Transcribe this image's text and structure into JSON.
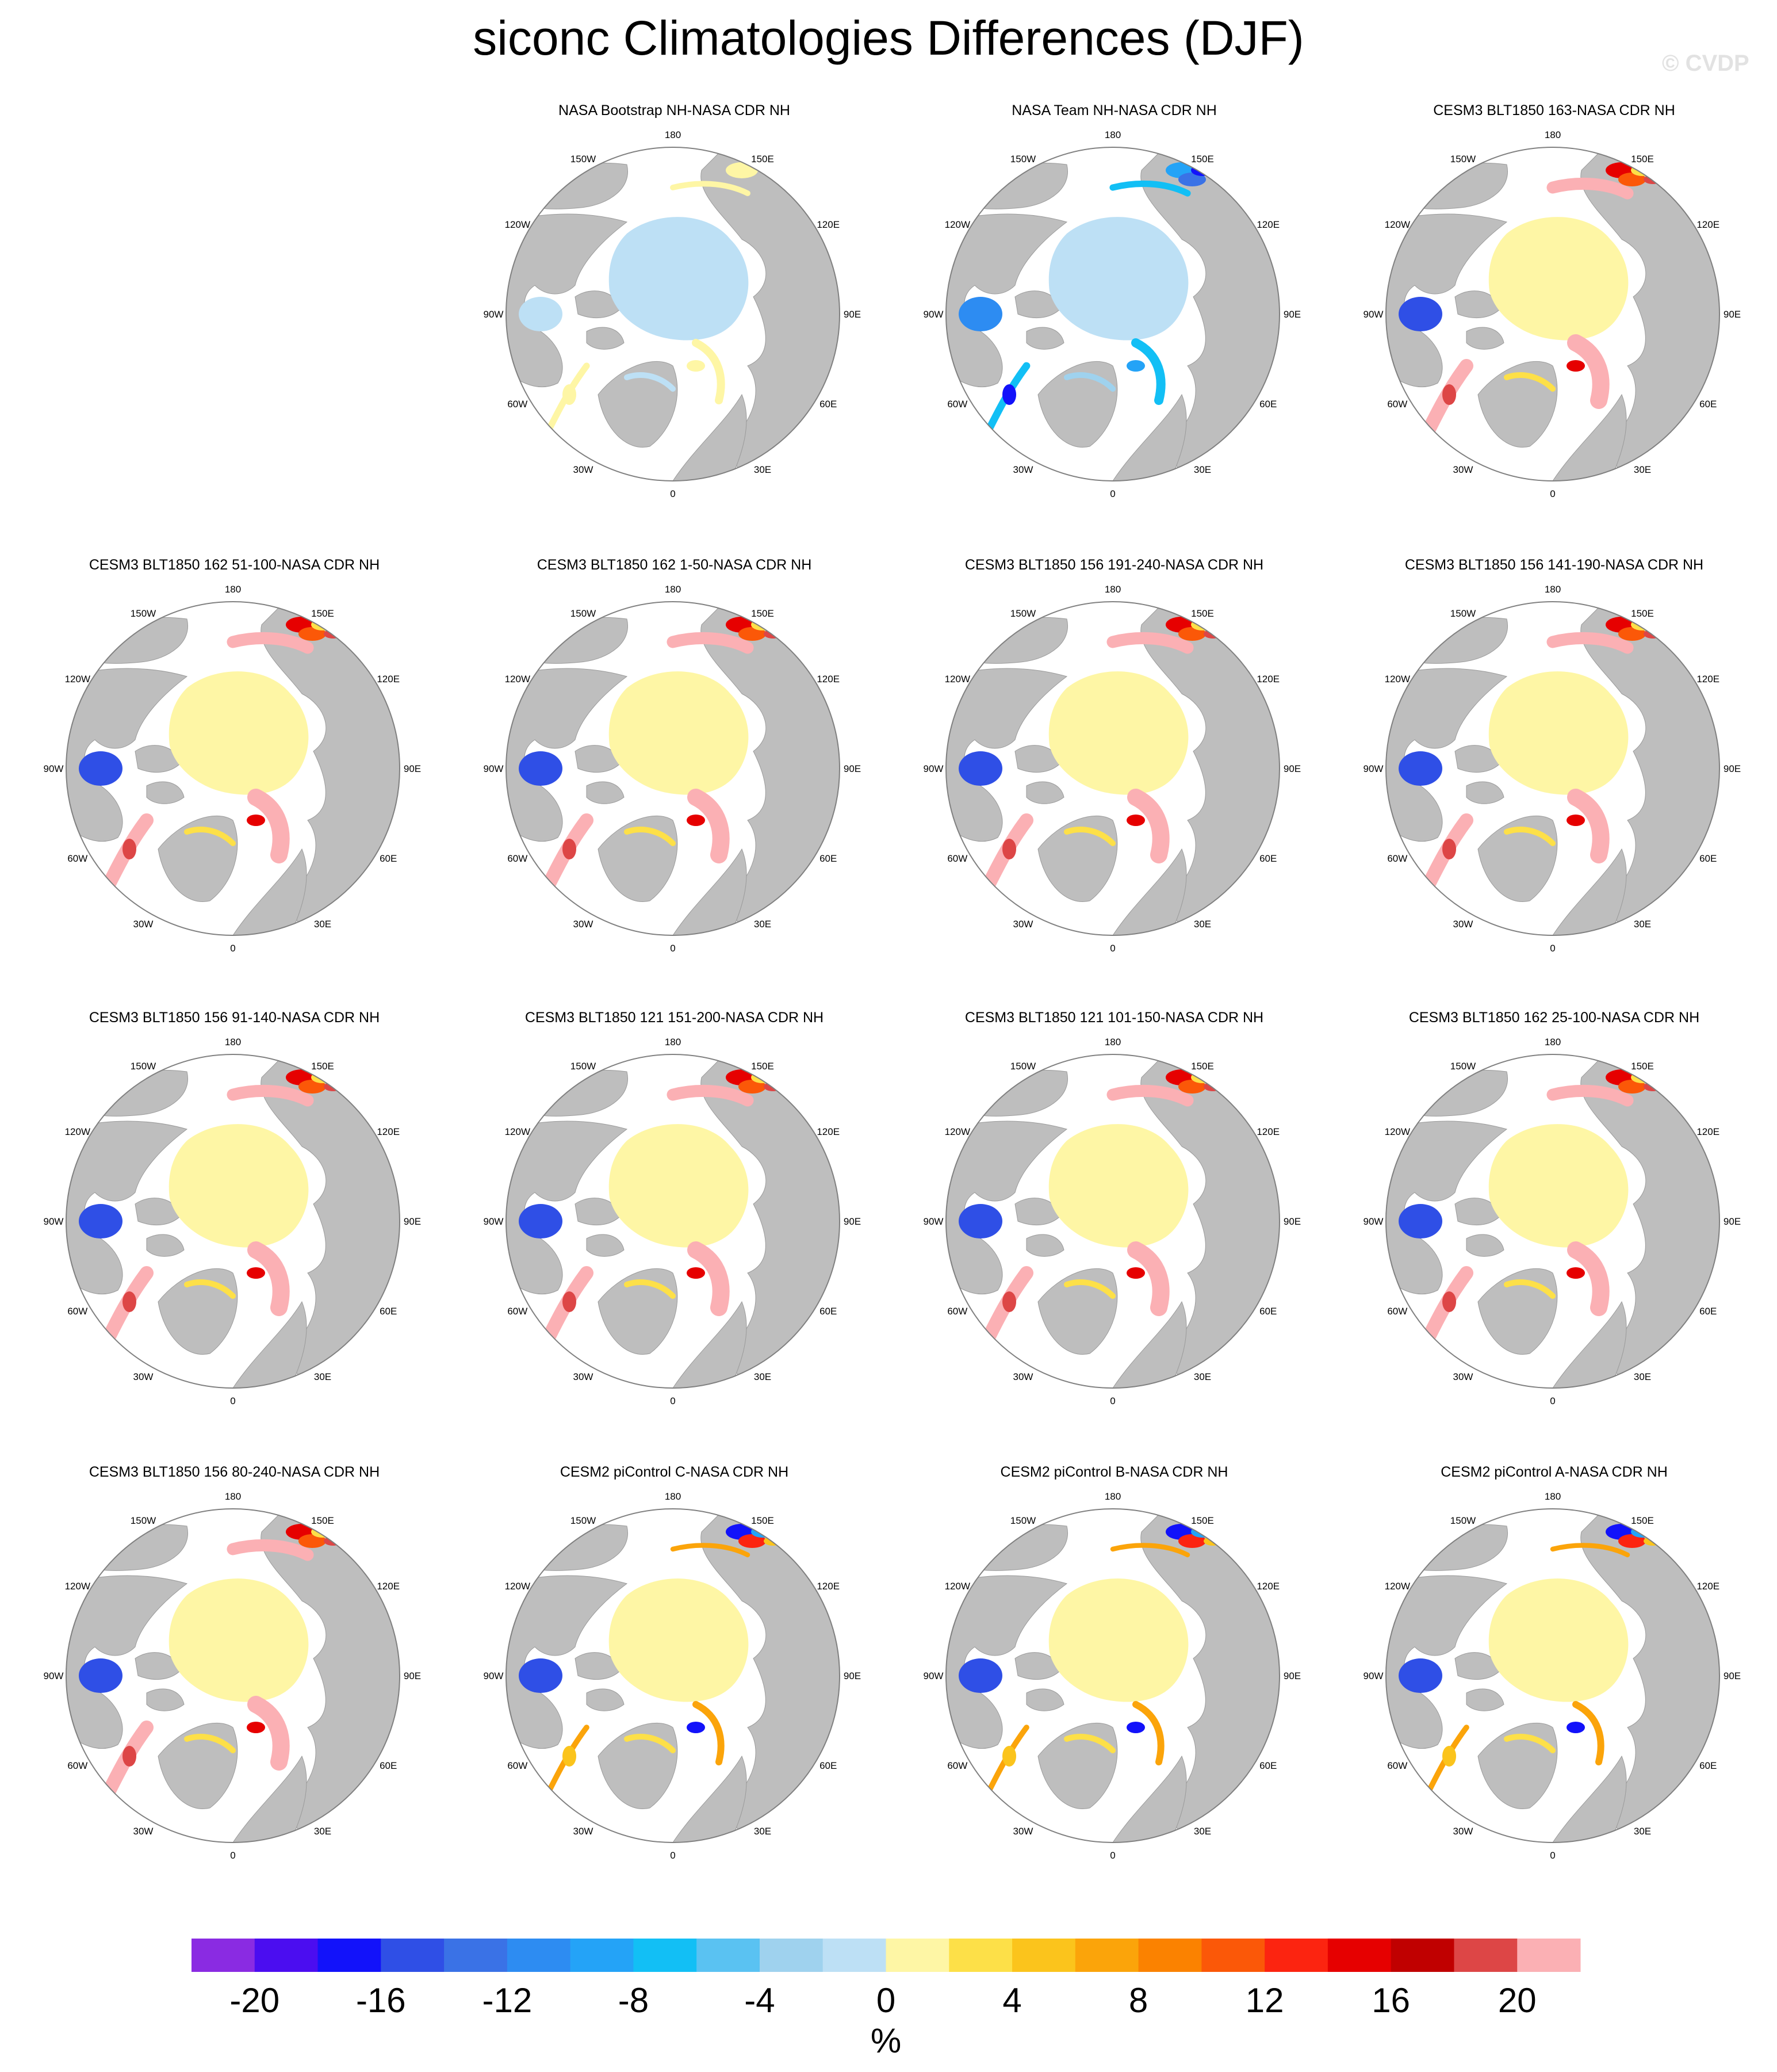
{
  "figure": {
    "title": "siconc Climatologies Differences (DJF)",
    "watermark": "© CVDP"
  },
  "lon_labels": [
    "180",
    "150E",
    "120E",
    "90E",
    "60E",
    "30E",
    "0",
    "30W",
    "60W",
    "90W",
    "120W",
    "150W"
  ],
  "colors": {
    "land": "#bebebe",
    "ocean": "#ffffff",
    "outline": "#808080",
    "zero_pos": "#fef6a5",
    "zero_neg": "#bde0f5"
  },
  "panels": [
    {
      "title": "NASA Bootstrap NH-NASA CDR NH",
      "scheme": "bootstrap"
    },
    {
      "title": "NASA Team NH-NASA CDR NH",
      "scheme": "team"
    },
    {
      "title": "CESM3 BLT1850 163-NASA CDR NH",
      "scheme": "model"
    },
    {
      "title": "CESM3 BLT1850 162 51-100-NASA CDR NH",
      "scheme": "model"
    },
    {
      "title": "CESM3 BLT1850 162 1-50-NASA CDR NH",
      "scheme": "model"
    },
    {
      "title": "CESM3 BLT1850 156 191-240-NASA CDR NH",
      "scheme": "model"
    },
    {
      "title": "CESM3 BLT1850 156 141-190-NASA CDR NH",
      "scheme": "model"
    },
    {
      "title": "CESM3 BLT1850 156 91-140-NASA CDR NH",
      "scheme": "model"
    },
    {
      "title": "CESM3 BLT1850 121 151-200-NASA CDR NH",
      "scheme": "model"
    },
    {
      "title": "CESM3 BLT1850 121 101-150-NASA CDR NH",
      "scheme": "model"
    },
    {
      "title": "CESM3 BLT1850 162 25-100-NASA CDR NH",
      "scheme": "model"
    },
    {
      "title": "CESM3 BLT1850 156 80-240-NASA CDR NH",
      "scheme": "model"
    },
    {
      "title": "CESM2 piControl C-NASA CDR NH",
      "scheme": "cesm2"
    },
    {
      "title": "CESM2 piControl B-NASA CDR NH",
      "scheme": "cesm2"
    },
    {
      "title": "CESM2 piControl A-NASA CDR NH",
      "scheme": "cesm2"
    }
  ],
  "colorbar": {
    "unit": "%",
    "tick_labels": [
      "-20",
      "-16",
      "-12",
      "-8",
      "-4",
      "0",
      "4",
      "8",
      "12",
      "16",
      "20"
    ],
    "colors": [
      "#8a2be2",
      "#4b0df0",
      "#1212fa",
      "#2f4fe6",
      "#3a72e6",
      "#2d8cf2",
      "#24a3f7",
      "#12bff5",
      "#5ac2f2",
      "#9fd2ee",
      "#bde0f5",
      "#fef6a5",
      "#fde048",
      "#fbc41c",
      "#fba40a",
      "#fb8200",
      "#fb5808",
      "#fc2410",
      "#e60000",
      "#c00000",
      "#dd4646",
      "#fbb0b4"
    ]
  }
}
